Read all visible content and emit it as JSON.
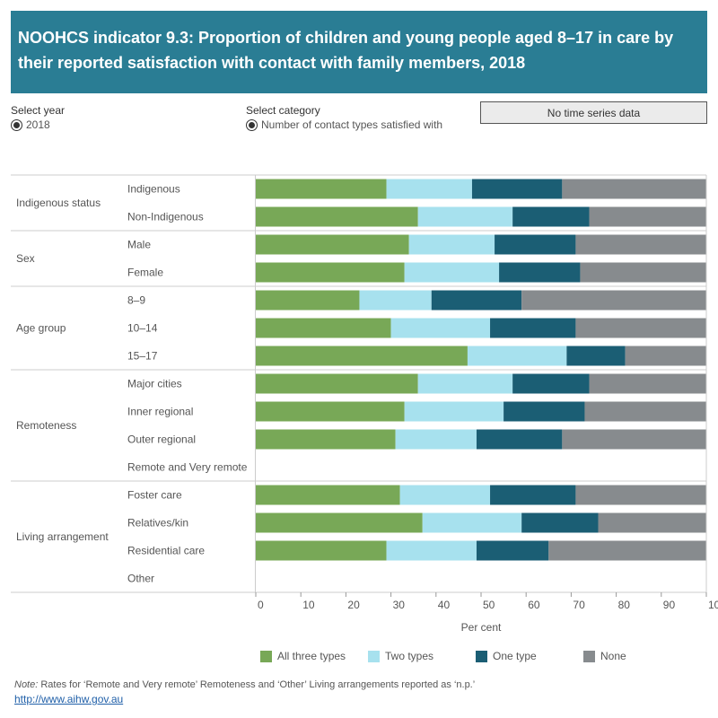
{
  "title": "NOOHCS indicator 9.3: Proportion of children and young people aged 8–17 in care by their reported satisfaction with contact with family members, 2018",
  "controls": {
    "year_label": "Select year",
    "year_value": "2018",
    "category_label": "Select category",
    "category_value": "Number of contact types satisfied with",
    "time_series_note": "No time series data"
  },
  "colors": {
    "All three types": "#78a857",
    "Two types": "#a7e1ee",
    "One type": "#1b5e74",
    "None": "#878b8e"
  },
  "chart_data": {
    "type": "bar",
    "orientation": "horizontal",
    "stacked": true,
    "xlabel": "Per cent",
    "xlim": [
      0,
      100
    ],
    "xticks": [
      0,
      10,
      20,
      30,
      40,
      50,
      60,
      70,
      80,
      90,
      100
    ],
    "groups": [
      {
        "name": "Indigenous status",
        "categories": [
          "Indigenous",
          "Non-Indigenous"
        ]
      },
      {
        "name": "Sex",
        "categories": [
          "Male",
          "Female"
        ]
      },
      {
        "name": "Age group",
        "categories": [
          "8–9",
          "10–14",
          "15–17"
        ]
      },
      {
        "name": "Remoteness",
        "categories": [
          "Major cities",
          "Inner regional",
          "Outer regional",
          "Remote and Very remote"
        ]
      },
      {
        "name": "Living arrangement",
        "categories": [
          "Foster care",
          "Relatives/kin",
          "Residential care",
          "Other"
        ]
      }
    ],
    "series": [
      {
        "name": "All three types",
        "values": [
          29,
          36,
          34,
          33,
          23,
          30,
          47,
          36,
          33,
          31,
          null,
          32,
          37,
          29,
          null
        ]
      },
      {
        "name": "Two types",
        "values": [
          19,
          21,
          19,
          21,
          16,
          22,
          22,
          21,
          22,
          18,
          null,
          20,
          22,
          20,
          null
        ]
      },
      {
        "name": "One type",
        "values": [
          20,
          17,
          18,
          18,
          20,
          19,
          13,
          17,
          18,
          19,
          null,
          19,
          17,
          16,
          null
        ]
      },
      {
        "name": "None",
        "values": [
          32,
          26,
          29,
          28,
          41,
          29,
          18,
          26,
          27,
          32,
          null,
          29,
          24,
          35,
          null
        ]
      }
    ],
    "legend_position": "bottom",
    "grid": false
  },
  "note": {
    "prefix": "Note:",
    "text": " Rates for ‘Remote and Very remote’ Remoteness and ‘Other’ Living arrangements reported as ‘n.p.’",
    "link": "http://www.aihw.gov.au"
  }
}
